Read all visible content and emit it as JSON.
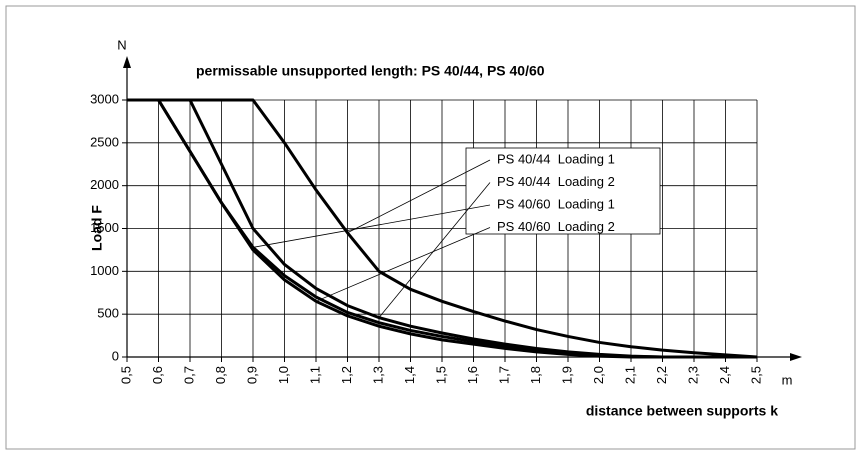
{
  "chart_data": {
    "type": "line",
    "title": "permissable unsupported length: PS 40/44, PS 40/60",
    "y_label": "Load F",
    "y_unit": "N",
    "x_label": "distance between supports k",
    "x_unit": "m",
    "x": [
      0.5,
      0.6,
      0.7,
      0.8,
      0.9,
      1.0,
      1.1,
      1.2,
      1.3,
      1.4,
      1.5,
      1.6,
      1.7,
      1.8,
      1.9,
      2.0,
      2.1,
      2.2,
      2.3,
      2.4,
      2.5
    ],
    "series": [
      {
        "name": "PS 40/44  Loading 1",
        "color": "#000000",
        "values": [
          3000,
          3000,
          3000,
          3000,
          3000,
          2500,
          1950,
          1450,
          1000,
          790,
          650,
          530,
          420,
          320,
          240,
          170,
          120,
          80,
          50,
          25,
          0
        ]
      },
      {
        "name": "PS 40/44  Loading 2",
        "color": "#000000",
        "values": [
          3000,
          3000,
          3000,
          2250,
          1500,
          1080,
          800,
          600,
          460,
          360,
          280,
          210,
          150,
          100,
          60,
          30,
          10,
          0,
          0,
          0,
          0
        ]
      },
      {
        "name": "PS 40/60  Loading 1",
        "color": "#000000",
        "values": [
          3000,
          3000,
          2400,
          1800,
          1280,
          950,
          700,
          520,
          400,
          310,
          240,
          180,
          130,
          85,
          50,
          20,
          5,
          0,
          0,
          0,
          0
        ]
      },
      {
        "name": "PS 40/60  Loading 2",
        "color": "#000000",
        "values": [
          3000,
          3000,
          2400,
          1800,
          1250,
          900,
          650,
          480,
          360,
          270,
          200,
          150,
          100,
          60,
          30,
          10,
          0,
          0,
          0,
          0,
          0
        ]
      }
    ],
    "xlim": [
      0.5,
      2.5
    ],
    "ylim": [
      0,
      3000
    ],
    "xticks": [
      {
        "value": 0.5,
        "label": "0,5"
      },
      {
        "value": 0.6,
        "label": "0,6"
      },
      {
        "value": 0.7,
        "label": "0,7"
      },
      {
        "value": 0.8,
        "label": "0,8"
      },
      {
        "value": 0.9,
        "label": "0,9"
      },
      {
        "value": 1.0,
        "label": "1,0"
      },
      {
        "value": 1.1,
        "label": "1,1"
      },
      {
        "value": 1.2,
        "label": "1,2"
      },
      {
        "value": 1.3,
        "label": "1,3"
      },
      {
        "value": 1.4,
        "label": "1,4"
      },
      {
        "value": 1.5,
        "label": "1,5"
      },
      {
        "value": 1.6,
        "label": "1,6"
      },
      {
        "value": 1.7,
        "label": "1,7"
      },
      {
        "value": 1.8,
        "label": "1,8"
      },
      {
        "value": 1.9,
        "label": "1,9"
      },
      {
        "value": 2.0,
        "label": "2,0"
      },
      {
        "value": 2.1,
        "label": "2,1"
      },
      {
        "value": 2.2,
        "label": "2,2"
      },
      {
        "value": 2.3,
        "label": "2,3"
      },
      {
        "value": 2.4,
        "label": "2,4"
      },
      {
        "value": 2.5,
        "label": "2,5"
      }
    ],
    "yticks": [
      0,
      500,
      1000,
      1500,
      2000,
      2500,
      3000
    ],
    "grid": true
  }
}
